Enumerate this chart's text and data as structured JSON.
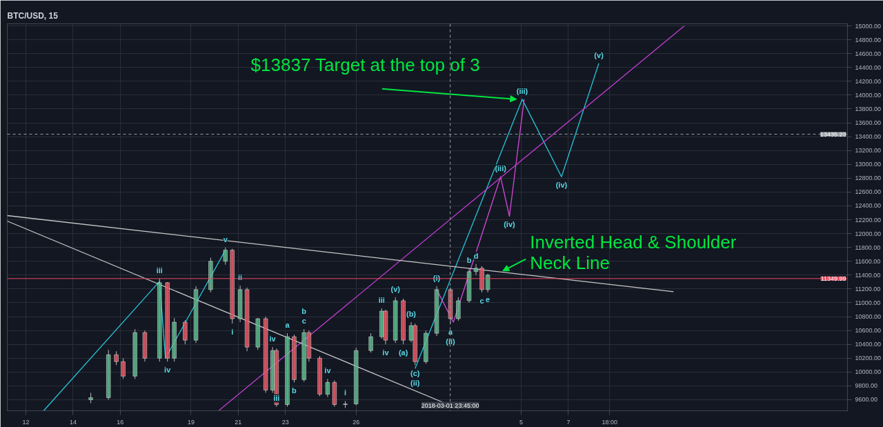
{
  "chart_data": {
    "type": "candlestick",
    "title": "BTC/USD, 15",
    "x": [
      "2018-02-14T18:00",
      "2018-02-15T12:00",
      "2018-02-15T20:00",
      "2018-02-16T03:00",
      "2018-02-16T15:00",
      "2018-02-17T01:00",
      "2018-02-17T16:00",
      "2018-02-18T00:00",
      "2018-02-18T07:00",
      "2018-02-18T18:00",
      "2018-02-19T05:00",
      "2018-02-19T20:00",
      "2018-02-20T11:00",
      "2018-02-20T18:00",
      "2018-02-21T02:00",
      "2018-02-21T09:00",
      "2018-02-21T20:00",
      "2018-02-22T04:00",
      "2018-02-22T11:00",
      "2018-02-22T15:00",
      "2018-02-23T02:00",
      "2018-02-23T09:00",
      "2018-02-23T19:00",
      "2018-02-24T00:00",
      "2018-02-24T11:00",
      "2018-02-24T19:00",
      "2018-02-25T02:00",
      "2018-02-25T13:00",
      "2018-02-26T00:00",
      "2018-02-26T15:00",
      "2018-02-27T02:00",
      "2018-02-27T06:00",
      "2018-02-27T16:00",
      "2018-02-28T00:00",
      "2018-02-28T08:00",
      "2018-02-28T12:00",
      "2018-02-28T23:00",
      "2018-03-01T10:00",
      "2018-03-02T00:00",
      "2018-03-02T08:00",
      "2018-03-02T19:00",
      "2018-03-03T02:00",
      "2018-03-03T08:00",
      "2018-03-03T14:00"
    ],
    "ohlc": [
      [
        9600,
        9700,
        9550,
        9630
      ],
      [
        9630,
        10320,
        9600,
        10250
      ],
      [
        10250,
        10300,
        10100,
        10150
      ],
      [
        10150,
        10200,
        9900,
        9940
      ],
      [
        9940,
        10620,
        9900,
        10570
      ],
      [
        10570,
        10600,
        10150,
        10200
      ],
      [
        10200,
        11350,
        10150,
        11290
      ],
      [
        11290,
        11300,
        10150,
        10200
      ],
      [
        10200,
        10780,
        10150,
        10720
      ],
      [
        10720,
        10750,
        10400,
        10460
      ],
      [
        10460,
        11240,
        10420,
        11190
      ],
      [
        11190,
        11650,
        11150,
        11600
      ],
      [
        11600,
        11800,
        11550,
        11760
      ],
      [
        11760,
        11780,
        10700,
        10770
      ],
      [
        10770,
        11250,
        10720,
        11190
      ],
      [
        11190,
        11220,
        10300,
        10360
      ],
      [
        10360,
        10780,
        10320,
        10770
      ],
      [
        10770,
        10800,
        9700,
        9740
      ],
      [
        9740,
        10360,
        9700,
        10310
      ],
      [
        10310,
        10340,
        9500,
        9530
      ],
      [
        9530,
        10560,
        9500,
        10510
      ],
      [
        10510,
        10540,
        9850,
        9890
      ],
      [
        9890,
        10620,
        9860,
        10570
      ],
      [
        10570,
        10600,
        10150,
        10200
      ],
      [
        10200,
        10230,
        9650,
        9680
      ],
      [
        9680,
        9900,
        9640,
        9850
      ],
      [
        9850,
        9880,
        9500,
        9530
      ],
      [
        9530,
        9580,
        9480,
        9540
      ],
      [
        9540,
        10350,
        9520,
        10310
      ],
      [
        10310,
        10560,
        10280,
        10510
      ],
      [
        10510,
        10920,
        10480,
        10880
      ],
      [
        10880,
        10900,
        10400,
        10460
      ],
      [
        10460,
        11080,
        10420,
        11030
      ],
      [
        11030,
        11060,
        10400,
        10460
      ],
      [
        10460,
        10720,
        10430,
        10670
      ],
      [
        10670,
        10700,
        10100,
        10150
      ],
      [
        10150,
        10600,
        10120,
        10560
      ],
      [
        10560,
        11240,
        10520,
        11190
      ],
      [
        11190,
        11220,
        10700,
        10770
      ],
      [
        10770,
        11080,
        10740,
        11030
      ],
      [
        11030,
        11500,
        11000,
        11450
      ],
      [
        11450,
        11560,
        11400,
        11500
      ],
      [
        11500,
        11530,
        11150,
        11190
      ],
      [
        11190,
        11420,
        11150,
        11400
      ]
    ],
    "series": [
      {
        "type": "line",
        "color": "#26c6da",
        "x": [
          "2018-02-12T18:00",
          "2018-02-17T16:00",
          "2018-02-17T22:00",
          "2018-02-20T11:00"
        ],
        "values": [
          9440,
          11310,
          10200,
          11760
        ]
      },
      {
        "type": "line",
        "color": "#26c6da",
        "x": [
          "2018-02-28T12:00",
          "2018-03-05T01:00",
          "2018-03-06T17:00",
          "2018-03-08T07:00"
        ],
        "values": [
          10050,
          13940,
          12820,
          14460
        ]
      },
      {
        "type": "line",
        "color": "#d54ad8",
        "x": [
          "2018-03-01T10:00",
          "2018-03-02T03:00",
          "2018-03-04T03:00",
          "2018-03-04T12:00",
          "2018-03-05T03:00"
        ],
        "values": [
          11190,
          10720,
          12820,
          12250,
          13940
        ]
      },
      {
        "type": "line",
        "color": "#c23ed1",
        "x": [
          "2018-02-20T04:00",
          "2018-03-11T22:00"
        ],
        "values": [
          9440,
          15000
        ]
      },
      {
        "type": "line",
        "color": "#c8c8c8",
        "x": [
          "2018-02-11T05:00",
          "2018-03-11T11:00"
        ],
        "values": [
          12260,
          11160
        ]
      },
      {
        "type": "line",
        "color": "#c8c8c8",
        "x": [
          "2018-02-11T05:00",
          "2018-03-02T08:00"
        ],
        "values": [
          12180,
          9470
        ]
      }
    ],
    "xlim": [
      "2018-02-11T05:00",
      "2018-03-18T20:00"
    ],
    "xticks": [
      {
        "value": "2018-02-12",
        "label": "12"
      },
      {
        "value": "2018-02-14",
        "label": "14"
      },
      {
        "value": "2018-02-16",
        "label": "16"
      },
      {
        "value": "2018-02-19",
        "label": "19"
      },
      {
        "value": "2018-02-21",
        "label": "21"
      },
      {
        "value": "2018-02-23",
        "label": "23"
      },
      {
        "value": "2018-02-26",
        "label": "26"
      },
      {
        "value": "2018-03-05",
        "label": "5"
      },
      {
        "value": "2018-03-07",
        "label": "7"
      },
      {
        "value": "2018-03-08T18:00",
        "label": "18:00"
      }
    ],
    "ylim": [
      9440,
      15030
    ],
    "yticks": [
      {
        "value": 9600,
        "label": "9600.00"
      },
      {
        "value": 9800,
        "label": "9800.00"
      },
      {
        "value": 10000,
        "label": "10000.00"
      },
      {
        "value": 10200,
        "label": "10200.00"
      },
      {
        "value": 10400,
        "label": "10400.00"
      },
      {
        "value": 10600,
        "label": "10600.00"
      },
      {
        "value": 10800,
        "label": "10800.00"
      },
      {
        "value": 11000,
        "label": "11000.00"
      },
      {
        "value": 11200,
        "label": "11200.00"
      },
      {
        "value": 11400,
        "label": "11400.00"
      },
      {
        "value": 11600,
        "label": "11600.00"
      },
      {
        "value": 11800,
        "label": "11800.00"
      },
      {
        "value": 12000,
        "label": "12000.00"
      },
      {
        "value": 12200,
        "label": "12200.00"
      },
      {
        "value": 12400,
        "label": "12400.00"
      },
      {
        "value": 12600,
        "label": "12600.00"
      },
      {
        "value": 12800,
        "label": "12800.00"
      },
      {
        "value": 13000,
        "label": "13000.00"
      },
      {
        "value": 13200,
        "label": "13200.00"
      },
      {
        "value": 13400,
        "label": "13400.00"
      },
      {
        "value": 13600,
        "label": "13600.00"
      },
      {
        "value": 13800,
        "label": "13800.00"
      },
      {
        "value": 14000,
        "label": "14000.00"
      },
      {
        "value": 14200,
        "label": "14200.00"
      },
      {
        "value": 14400,
        "label": "14400.00"
      },
      {
        "value": 14600,
        "label": "14600.00"
      },
      {
        "value": 14800,
        "label": "14800.00"
      },
      {
        "value": 15000,
        "label": "15000.00"
      }
    ],
    "grid": true,
    "ref_lines": [
      {
        "axis": "y",
        "value": 11349.99,
        "label": "11349.99",
        "color": "#e84a5f",
        "line_style": "solid"
      },
      {
        "axis": "y",
        "value": 13435.23,
        "label": "13435.23",
        "color": "#9aa0a6",
        "line_style": "dashed"
      },
      {
        "axis": "x",
        "value": "2018-03-01T23:45",
        "label": "2018-03-01 23:45:00",
        "color": "#9aa0a6",
        "line_style": "dashed"
      }
    ],
    "annotations": [
      {
        "text": "$13837 Target at the top of 3",
        "x": "2018-03-05T01:00",
        "y": 13940
      },
      {
        "text": "Inverted Head & Shoulder\nNeck Line",
        "x": "2018-03-04T03:00",
        "y": 11450
      },
      {
        "text": "iii",
        "x": "2018-02-17T16:00",
        "y": 11350
      },
      {
        "text": "iv",
        "x": "2018-02-18T00:00",
        "y": 10150
      },
      {
        "text": "v",
        "x": "2018-02-20T11:00",
        "y": 11800
      },
      {
        "text": "i",
        "x": "2018-02-20T18:00",
        "y": 10700
      },
      {
        "text": "ii",
        "x": "2018-02-21T02:00",
        "y": 11250
      },
      {
        "text": "iii",
        "x": "2018-02-22T15:00",
        "y": 9500
      },
      {
        "text": "iv",
        "x": "2018-02-22T11:00",
        "y": 10360
      },
      {
        "text": "a",
        "x": "2018-02-23T02:00",
        "y": 10560
      },
      {
        "text": "b",
        "x": "2018-02-23T09:00",
        "y": 9850
      },
      {
        "text": "c",
        "x": "2018-02-23T19:00",
        "y": 10620
      },
      {
        "text": "b",
        "x": "2018-02-23T19:00",
        "y": 10620
      },
      {
        "text": "iv",
        "x": "2018-02-24T19:00",
        "y": 9900
      },
      {
        "text": "i",
        "x": "2018-02-25T13:00",
        "y": 9580
      },
      {
        "text": "iii",
        "x": "2018-02-27T02:00",
        "y": 10920
      },
      {
        "text": "iv",
        "x": "2018-02-27T06:00",
        "y": 10400
      },
      {
        "text": "(v)",
        "x": "2018-02-27T16:00",
        "y": 11080
      },
      {
        "text": "(a)",
        "x": "2018-02-28T00:00",
        "y": 10400
      },
      {
        "text": "(b)",
        "x": "2018-02-28T08:00",
        "y": 10720
      },
      {
        "text": "(c)",
        "x": "2018-02-28T12:00",
        "y": 10100
      },
      {
        "text": "(ii)",
        "x": "2018-02-28T12:00",
        "y": 10100
      },
      {
        "text": "(i)",
        "x": "2018-03-01T10:00",
        "y": 11240
      },
      {
        "text": "a",
        "x": "2018-03-02T00:00",
        "y": 10700
      },
      {
        "text": "(ii)",
        "x": "2018-03-02T00:00",
        "y": 10700
      },
      {
        "text": "b",
        "x": "2018-03-02T19:00",
        "y": 11500
      },
      {
        "text": "c",
        "x": "2018-03-03T08:00",
        "y": 11150
      },
      {
        "text": "d",
        "x": "2018-03-03T02:00",
        "y": 11560
      },
      {
        "text": "e",
        "x": "2018-03-03T14:00",
        "y": 11150
      },
      {
        "text": "(iii)",
        "x": "2018-03-04T03:00",
        "y": 12820
      },
      {
        "text": "(iv)",
        "x": "2018-03-04T12:00",
        "y": 12250
      },
      {
        "text": "(iii)",
        "x": "2018-03-05T01:00",
        "y": 13940
      },
      {
        "text": "(iv)",
        "x": "2018-03-06T17:00",
        "y": 12820
      },
      {
        "text": "(v)",
        "x": "2018-03-08T07:00",
        "y": 14460
      }
    ]
  }
}
